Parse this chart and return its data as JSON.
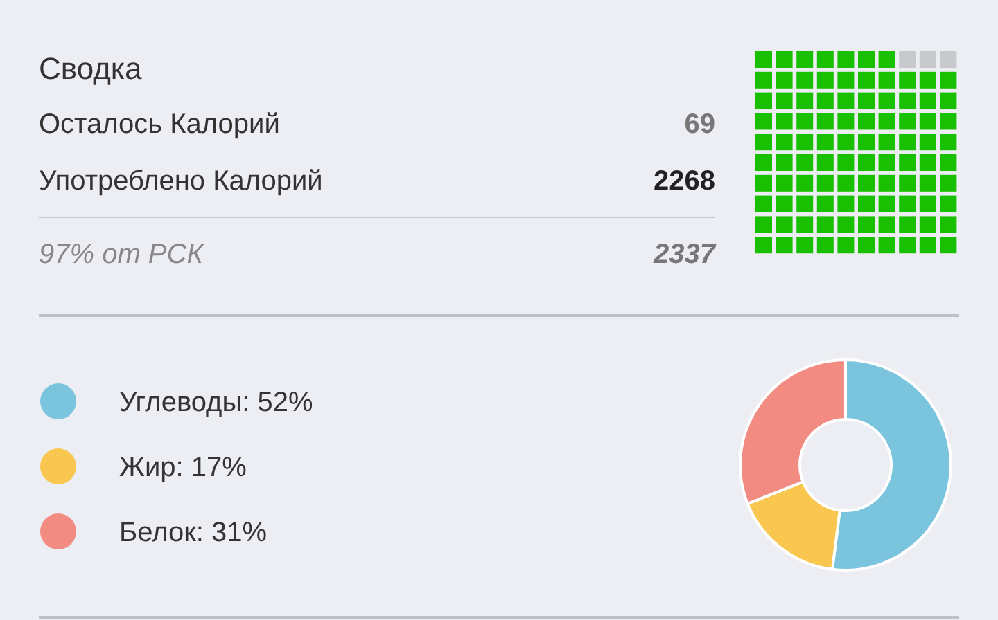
{
  "chart_data": [
    {
      "type": "other",
      "title": "Сводка",
      "categories": [
        "Осталось Калорий",
        "Употреблено Калорий",
        "97% от РСК"
      ],
      "values": [
        69,
        2268,
        2337
      ],
      "value_labels": [
        "69",
        "2268",
        "2337"
      ],
      "colors": [
        "#c8c9cc",
        "#19c000",
        "#888888"
      ]
    },
    {
      "type": "donut",
      "categories": [
        "Углеводы: 52%",
        "Жир: 17%",
        "Белок: 31%"
      ],
      "values": [
        52,
        17,
        31
      ],
      "colors": [
        "#7bc4dd",
        "#f9c74f",
        "#f28b82"
      ],
      "legend": "left"
    }
  ]
}
